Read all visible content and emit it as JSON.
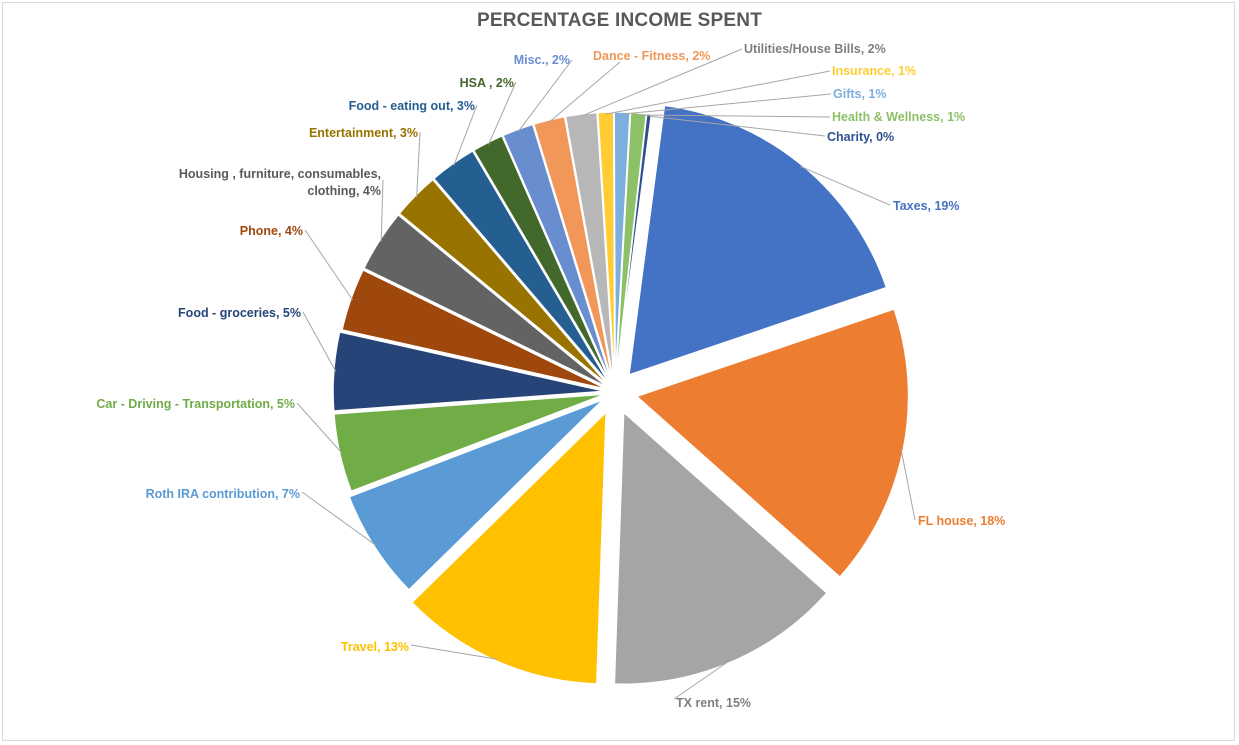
{
  "chart_data": {
    "type": "pie",
    "title": "PERCENTAGE INCOME SPENT",
    "slices": [
      {
        "name": "Taxes",
        "value": 19,
        "label": "Taxes, 19%",
        "color": "#4472c4"
      },
      {
        "name": "FL house",
        "value": 18,
        "label": "FL house, 18%",
        "color": "#ed7d31"
      },
      {
        "name": "TX rent",
        "value": 15,
        "label": "TX rent, 15%",
        "color": "#a5a5a5"
      },
      {
        "name": "Travel",
        "value": 13,
        "label": "Travel, 13%",
        "color": "#ffc000"
      },
      {
        "name": "Roth IRA contribution",
        "value": 7,
        "label": "Roth IRA contribution, 7%",
        "color": "#5b9bd5"
      },
      {
        "name": "Car - Driving - Transportation",
        "value": 5,
        "label": "Car - Driving - Transportation, 5%",
        "color": "#70ad47"
      },
      {
        "name": "Food - groceries",
        "value": 5,
        "label": "Food - groceries, 5%",
        "color": "#264478"
      },
      {
        "name": "Phone",
        "value": 4,
        "label": "Phone, 4%",
        "color": "#9e480e"
      },
      {
        "name": "Housing , furniture, consumables, clothing",
        "value": 4,
        "label": [
          "Housing , furniture, consumables,",
          "clothing, 4%"
        ],
        "color": "#636363"
      },
      {
        "name": "Entertainment",
        "value": 3,
        "label": "Entertainment, 3%",
        "color": "#997300"
      },
      {
        "name": "Food - eating out",
        "value": 3,
        "label": "Food - eating out, 3%",
        "color": "#255e91"
      },
      {
        "name": "HSA",
        "value": 2,
        "label": "HSA , 2%",
        "color": "#43682b"
      },
      {
        "name": "Misc.",
        "value": 2,
        "label": "Misc., 2%",
        "color": "#698ed0"
      },
      {
        "name": "Dance - Fitness",
        "value": 2,
        "label": "Dance - Fitness, 2%",
        "color": "#f1975a"
      },
      {
        "name": "Utilities/House Bills",
        "value": 2,
        "label": "Utilities/House Bills, 2%",
        "color": "#b7b7b7"
      },
      {
        "name": "Insurance",
        "value": 1,
        "label": "Insurance, 1%",
        "color": "#ffcd33"
      },
      {
        "name": "Gifts",
        "value": 1,
        "label": "Gifts, 1%",
        "color": "#7cafdd"
      },
      {
        "name": "Health & Wellness",
        "value": 1,
        "label": "Health & Wellness, 1%",
        "color": "#8cc168"
      },
      {
        "name": "Charity",
        "value": 0.3,
        "label": "Charity, 0%",
        "color": "#2f4f8f"
      }
    ]
  }
}
